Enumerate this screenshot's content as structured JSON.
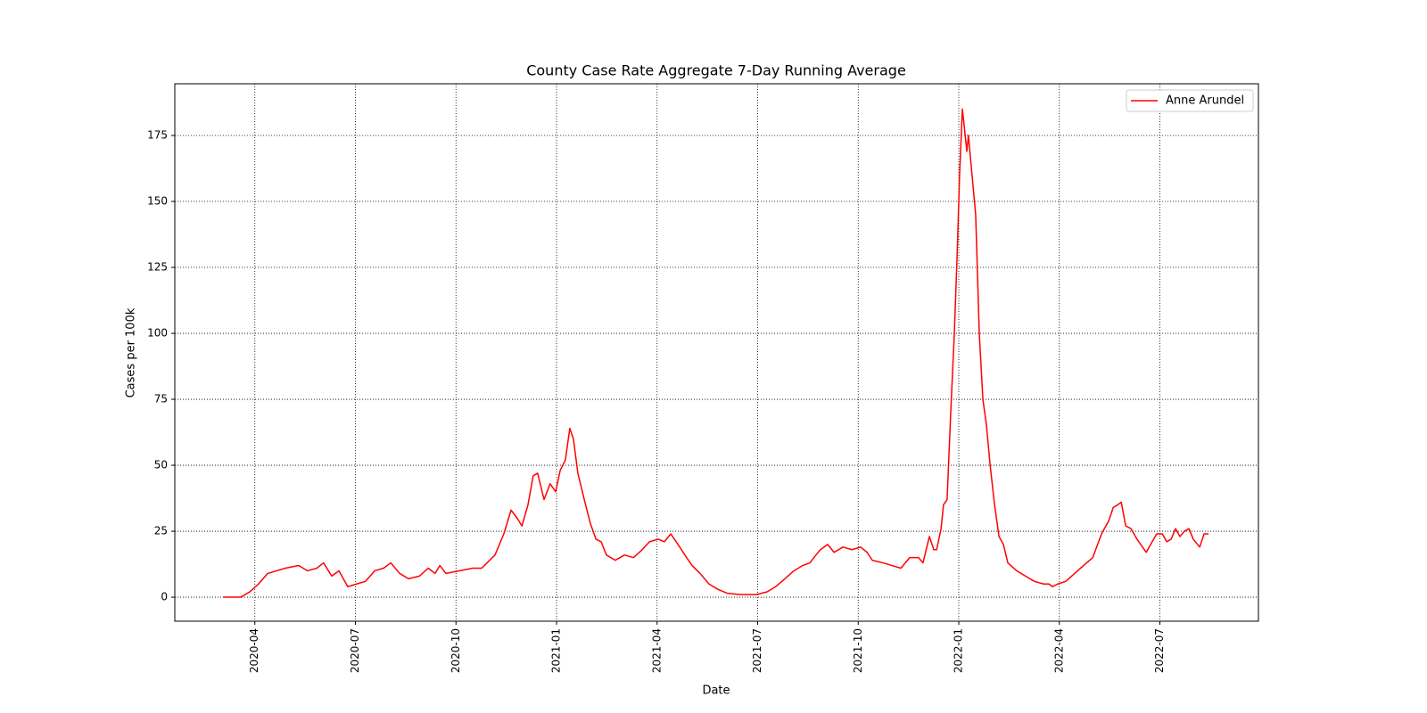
{
  "chart_data": {
    "type": "line",
    "title": "County Case Rate Aggregate 7-Day Running Average",
    "xlabel": "Date",
    "ylabel": "Cases per 100k",
    "x": [
      2020.171,
      2020.215,
      2020.237,
      2020.259,
      2020.282,
      2020.304,
      2020.326,
      2020.359,
      2020.381,
      2020.404,
      2020.421,
      2020.441,
      2020.459,
      2020.481,
      2020.503,
      2020.525,
      2020.548,
      2020.57,
      2020.588,
      2020.61,
      2020.632,
      2020.659,
      2020.681,
      2020.698,
      2020.71,
      2020.725,
      2020.758,
      2020.792,
      2020.814,
      2020.847,
      2020.869,
      2020.887,
      2020.902,
      2020.914,
      2020.929,
      2020.942,
      2020.953,
      2020.969,
      2020.984,
      2020.998,
      2021.009,
      2021.022,
      2021.033,
      2021.042,
      2021.053,
      2021.069,
      2021.084,
      2021.098,
      2021.111,
      2021.124,
      2021.146,
      2021.169,
      2021.191,
      2021.213,
      2021.231,
      2021.253,
      2021.268,
      2021.284,
      2021.302,
      2021.319,
      2021.337,
      2021.357,
      2021.379,
      2021.401,
      2021.424,
      2021.457,
      2021.497,
      2021.523,
      2021.545,
      2021.568,
      2021.59,
      2021.612,
      2021.63,
      2021.645,
      2021.656,
      2021.674,
      2021.69,
      2021.712,
      2021.734,
      2021.756,
      2021.772,
      2021.785,
      2021.812,
      2021.834,
      2021.856,
      2021.878,
      2021.9,
      2021.911,
      2021.927,
      2021.938,
      2021.945,
      2021.956,
      2021.962,
      2021.971,
      2021.98,
      2021.989,
      2021.996,
      2022.002,
      2022.009,
      2022.016,
      2022.02,
      2022.024,
      2022.033,
      2022.042,
      2022.051,
      2022.06,
      2022.069,
      2022.078,
      2022.089,
      2022.1,
      2022.111,
      2022.122,
      2022.144,
      2022.166,
      2022.188,
      2022.211,
      2022.224,
      2022.233,
      2022.246,
      2022.266,
      2022.288,
      2022.31,
      2022.333,
      2022.355,
      2022.373,
      2022.384,
      2022.395,
      2022.404,
      2022.415,
      2022.428,
      2022.443,
      2022.466,
      2022.477,
      2022.492,
      2022.506,
      2022.517,
      2022.528,
      2022.539,
      2022.55,
      2022.561,
      2022.572,
      2022.583,
      2022.599,
      2022.61,
      2022.621
    ],
    "series": [
      {
        "name": "Anne Arundel",
        "color": "#ff0000",
        "values": [
          0,
          0,
          2,
          5,
          9,
          10,
          11,
          12,
          10,
          11,
          13,
          8,
          10,
          4,
          5,
          6,
          10,
          11,
          13,
          9,
          7,
          8,
          11,
          9,
          12,
          9,
          10,
          11,
          11,
          16,
          24,
          33,
          30,
          27,
          35,
          46,
          47,
          37,
          43,
          40,
          48,
          52,
          64,
          60,
          47,
          37,
          28,
          22,
          21,
          16,
          14,
          16,
          15,
          18,
          21,
          22,
          21,
          24,
          20,
          16,
          12,
          9,
          5,
          3,
          1.5,
          1,
          1,
          2,
          4,
          7,
          10,
          12,
          13,
          16,
          18,
          20,
          17,
          19,
          18,
          19,
          17,
          14,
          13,
          12,
          11,
          15,
          15,
          13,
          23,
          18,
          18,
          26,
          35,
          37,
          70,
          100,
          130,
          160,
          185,
          175,
          169,
          175,
          160,
          145,
          100,
          75,
          65,
          50,
          35,
          23,
          20,
          13,
          10,
          8,
          6,
          5,
          5,
          4,
          5,
          6,
          9,
          12,
          15,
          24,
          29,
          34,
          35,
          36,
          27,
          26,
          22,
          17,
          20,
          24,
          24,
          21,
          22,
          26,
          23,
          25,
          26,
          22,
          19,
          24,
          24
        ]
      }
    ],
    "xlim": [
      2020.051,
      2022.745
    ],
    "xticks": [
      {
        "value": 2020.25,
        "label": "2020-04"
      },
      {
        "value": 2020.5,
        "label": "2020-07"
      },
      {
        "value": 2020.75,
        "label": "2020-10"
      },
      {
        "value": 2021,
        "label": "2021-01"
      },
      {
        "value": 2021.25,
        "label": "2021-04"
      },
      {
        "value": 2021.5,
        "label": "2021-07"
      },
      {
        "value": 2021.75,
        "label": "2021-10"
      },
      {
        "value": 2022,
        "label": "2022-01"
      },
      {
        "value": 2022.25,
        "label": "2022-04"
      },
      {
        "value": 2022.5,
        "label": "2022-07"
      }
    ],
    "ylim": [
      -9.1,
      194.6
    ],
    "yticks": [
      0,
      25,
      50,
      75,
      100,
      125,
      150,
      175
    ],
    "grid": true,
    "legend": "upper right"
  }
}
